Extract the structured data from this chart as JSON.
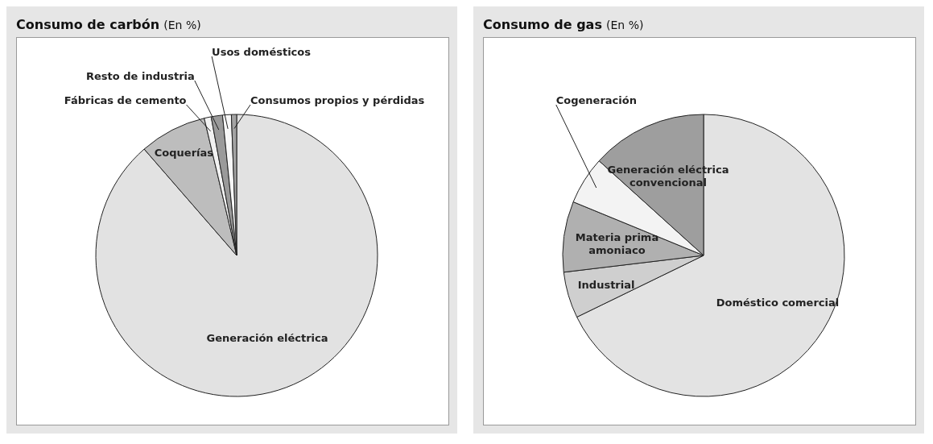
{
  "chart_data": [
    {
      "type": "pie",
      "title": "Consumo de carbón",
      "subtitle": "(En %)",
      "categories": [
        "Generación eléctrica",
        "Coquerías",
        "Fábricas de cemento",
        "Resto de industria",
        "Usos domésticos",
        "Consumos propios y pérdidas"
      ],
      "values": [
        88.6,
        7.7,
        0.8,
        1.3,
        1.0,
        0.6
      ],
      "colors": [
        "#e2e2e2",
        "#bdbdbd",
        "#f2f2f2",
        "#9a9a9a",
        "#f7f7f7",
        "#a3a3a3"
      ],
      "legend": false
    },
    {
      "type": "pie",
      "title": "Consumo de gas",
      "subtitle": "(En %)",
      "categories": [
        "Doméstico comercial",
        "Industrial",
        "Materia prima amoniaco",
        "Cogeneración",
        "Generación eléctrica convencional"
      ],
      "values": [
        67.8,
        5.3,
        8.1,
        5.5,
        13.3
      ],
      "colors": [
        "#e3e3e3",
        "#cfcfcf",
        "#b0b0b0",
        "#f3f3f3",
        "#9e9e9e"
      ],
      "legend": false
    }
  ]
}
